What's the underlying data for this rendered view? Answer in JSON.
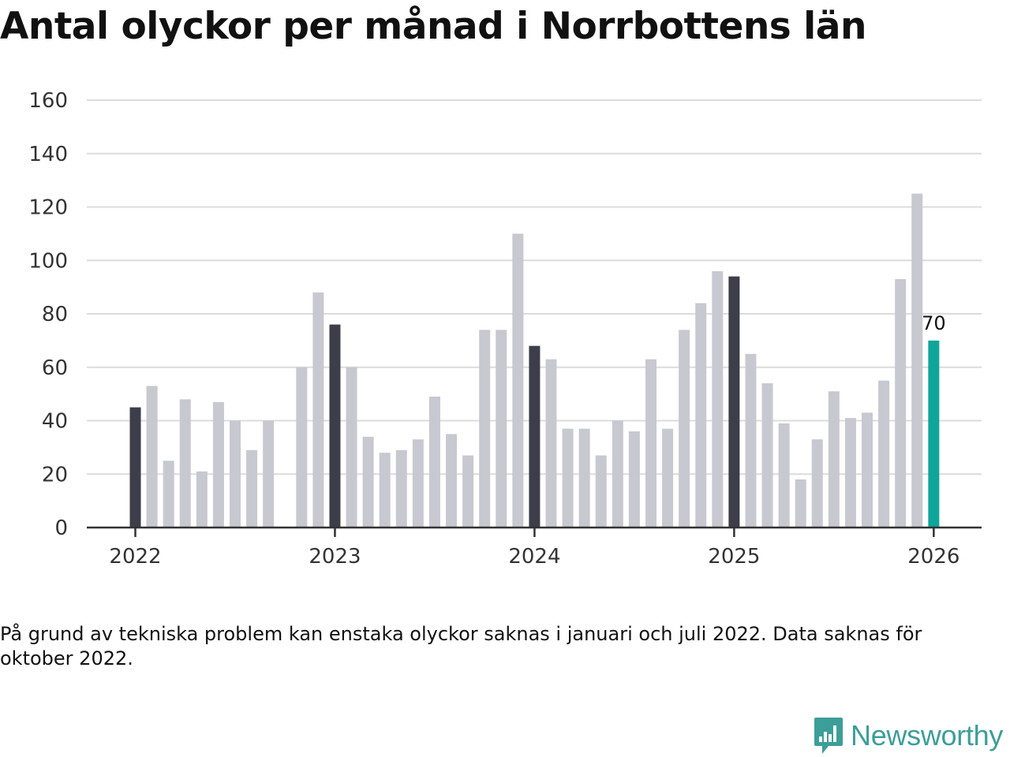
{
  "title": "Antal olyckor per månad i Norrbottens län",
  "note": "På grund av tekniska problem kan enstaka olyckor saknas i januari och juli 2022. Data saknas för oktober 2022.",
  "brand": {
    "name": "Newsworthy",
    "icon": "newsworthy-logo-icon"
  },
  "colors": {
    "bar_default": "#c8c8d0",
    "bar_january": "#3e3e4a",
    "bar_latest": "#10a59a",
    "grid": "#dcdcdc",
    "axis": "#333333",
    "tick_text": "#333333"
  },
  "chart_data": {
    "type": "bar",
    "title": "Antal olyckor per månad i Norrbottens län",
    "xlabel": "",
    "ylabel": "",
    "ylim": [
      0,
      160
    ],
    "y_ticks": [
      0,
      20,
      40,
      60,
      80,
      100,
      120,
      140,
      160
    ],
    "grid": true,
    "x_tick_labels": [
      "2022",
      "2023",
      "2024",
      "2025",
      "2026"
    ],
    "highlight": "januari-staplar mörka, senaste månaden grön",
    "annotation": {
      "month": "2026-01",
      "label": "70"
    },
    "months": [
      "2022-01",
      "2022-02",
      "2022-03",
      "2022-04",
      "2022-05",
      "2022-06",
      "2022-07",
      "2022-08",
      "2022-09",
      "2022-10",
      "2022-11",
      "2022-12",
      "2023-01",
      "2023-02",
      "2023-03",
      "2023-04",
      "2023-05",
      "2023-06",
      "2023-07",
      "2023-08",
      "2023-09",
      "2023-10",
      "2023-11",
      "2023-12",
      "2024-01",
      "2024-02",
      "2024-03",
      "2024-04",
      "2024-05",
      "2024-06",
      "2024-07",
      "2024-08",
      "2024-09",
      "2024-10",
      "2024-11",
      "2024-12",
      "2025-01",
      "2025-02",
      "2025-03",
      "2025-04",
      "2025-05",
      "2025-06",
      "2025-07",
      "2025-08",
      "2025-09",
      "2025-10",
      "2025-11",
      "2025-12",
      "2026-01"
    ],
    "values": [
      45,
      53,
      25,
      48,
      21,
      47,
      40,
      29,
      40,
      null,
      60,
      88,
      76,
      60,
      34,
      28,
      29,
      33,
      49,
      35,
      27,
      74,
      74,
      110,
      68,
      63,
      37,
      37,
      27,
      40,
      36,
      63,
      37,
      74,
      84,
      96,
      94,
      65,
      54,
      39,
      18,
      33,
      51,
      41,
      43,
      55,
      93,
      125,
      70
    ]
  }
}
